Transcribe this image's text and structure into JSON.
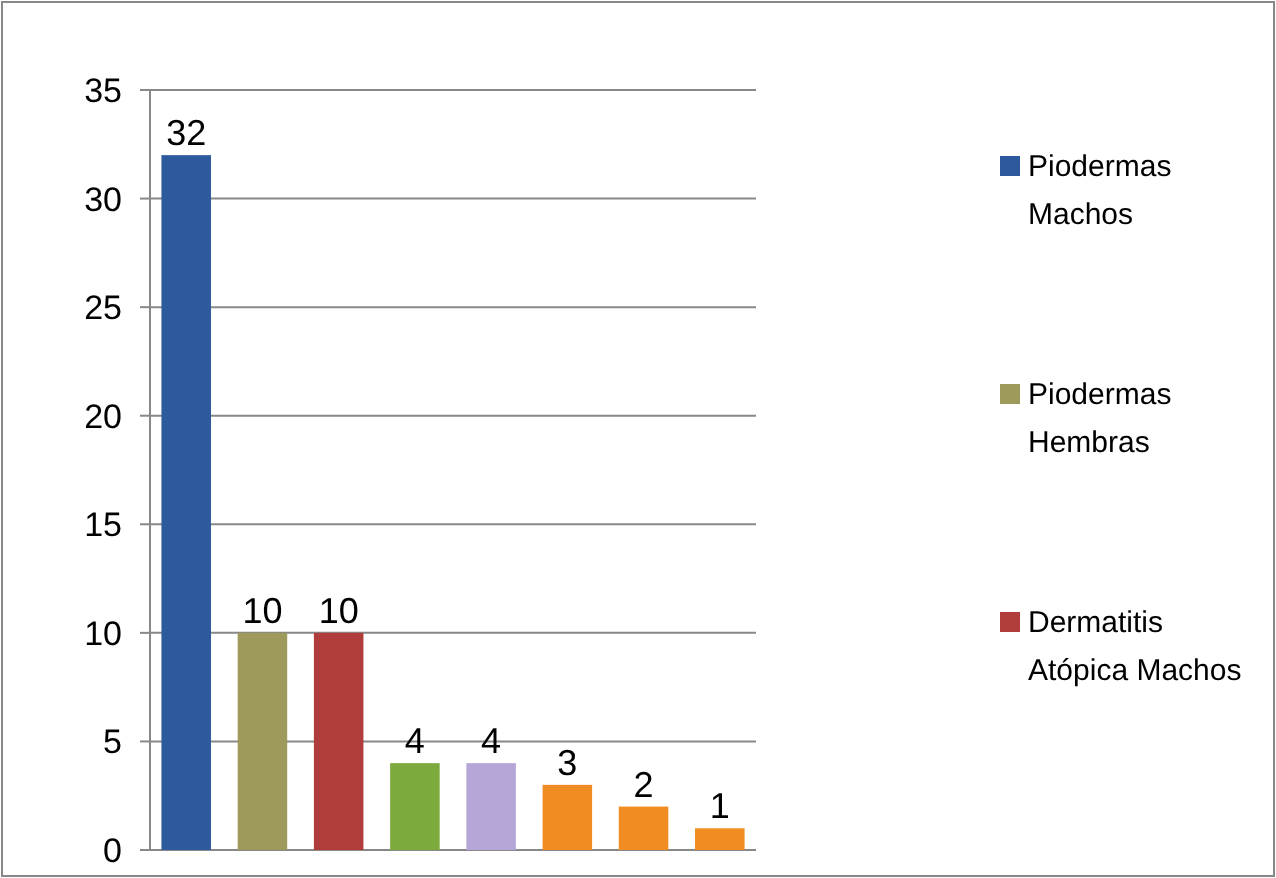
{
  "chart_data": {
    "type": "bar",
    "categories": [
      null
    ],
    "series": [
      {
        "name": "Piodermas Machos",
        "color": "#2d5a9c",
        "values": [
          32
        ]
      },
      {
        "name": "Piodermas Hembras",
        "color": "#9e9a5c",
        "values": [
          10
        ]
      },
      {
        "name": "Dermatitis Atópica Machos",
        "color": "#b03d3b",
        "values": [
          10
        ]
      },
      {
        "color": "#7daa3c",
        "values": [
          4
        ]
      },
      {
        "color": "#b6a6d8",
        "values": [
          4
        ]
      },
      {
        "color": "#f08c22",
        "values": [
          3
        ]
      },
      {
        "color": "#f08c22",
        "values": [
          2
        ]
      },
      {
        "color": "#f08c22",
        "values": [
          1
        ]
      }
    ],
    "ylim": [
      0,
      35
    ],
    "yticks": [
      0,
      5,
      10,
      15,
      20,
      25,
      30,
      35
    ],
    "grid": "y",
    "legend": "right",
    "data_labels": true
  }
}
